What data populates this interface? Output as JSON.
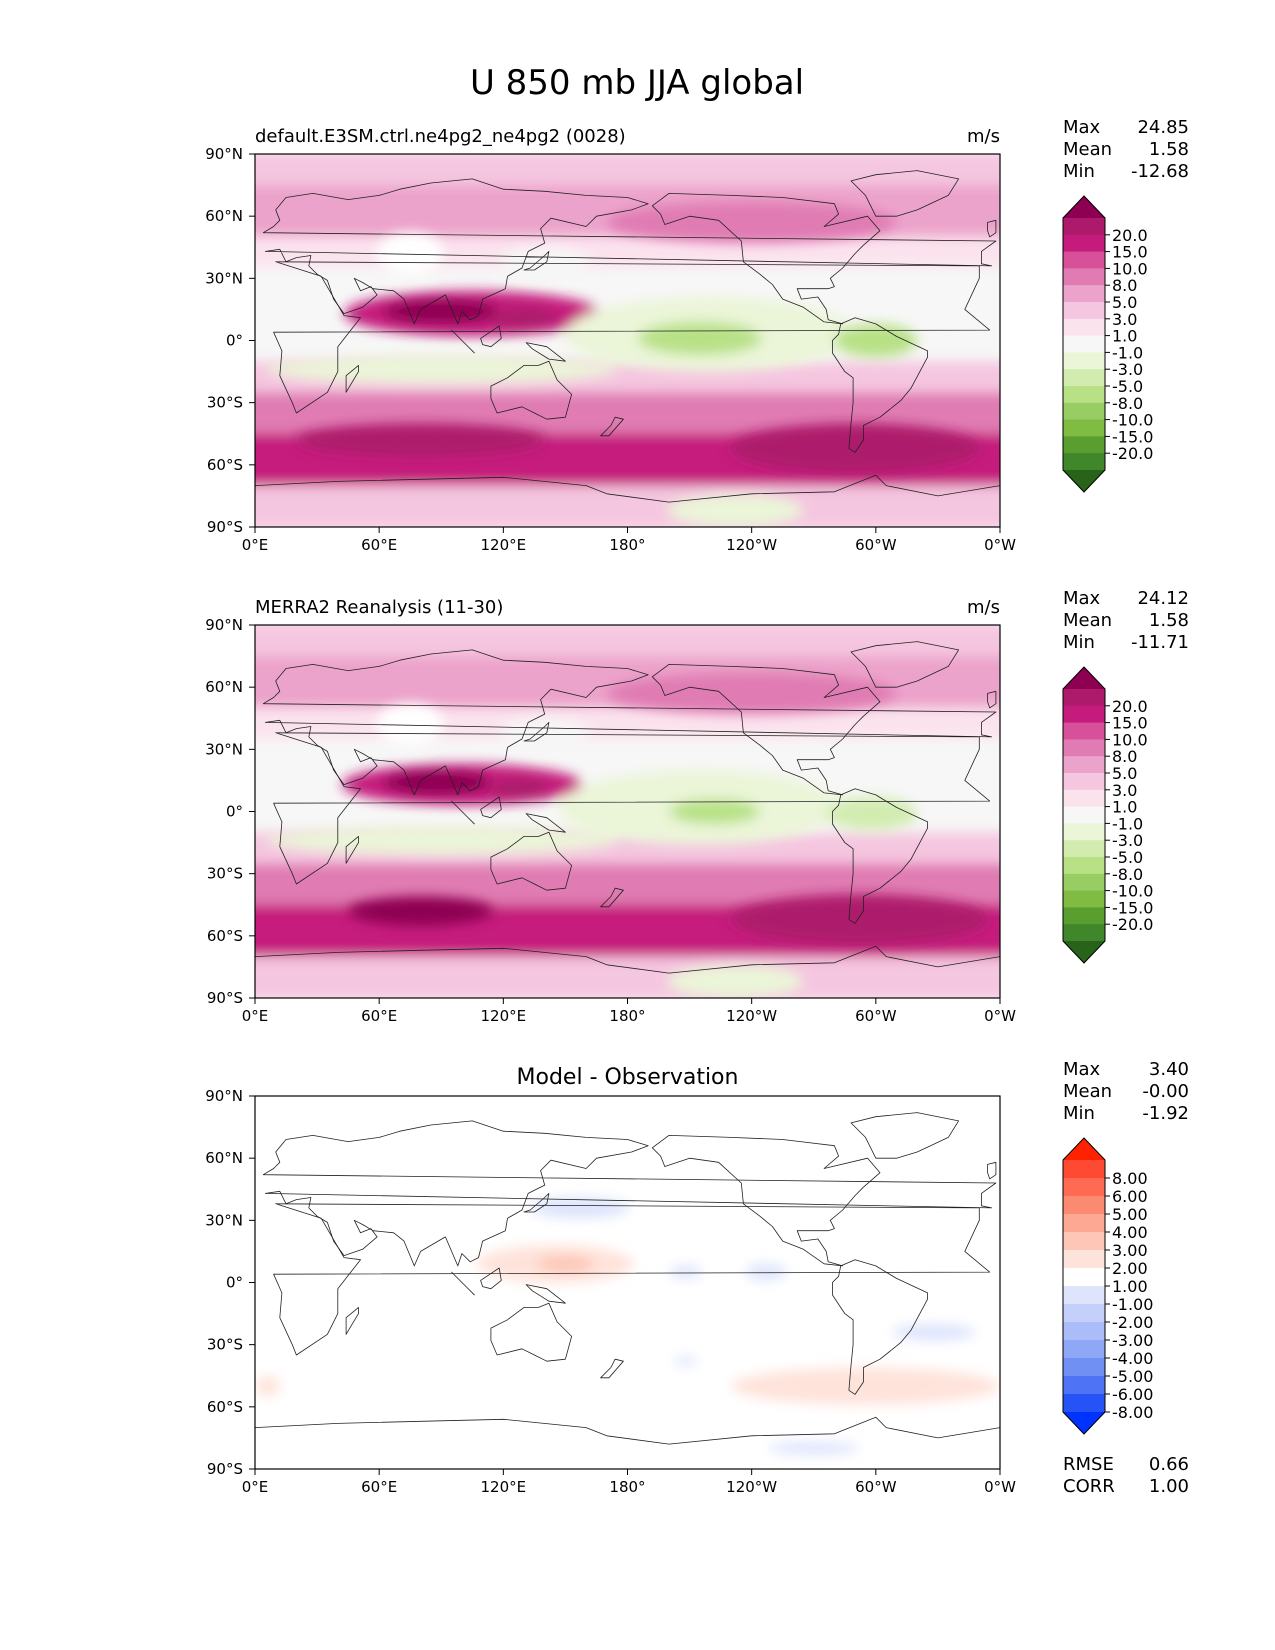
{
  "title": "U 850 mb JJA global",
  "chart_data": [
    {
      "type": "heatmap",
      "title": "default.E3SM.ctrl.ne4pg2_ne4pg2 (0028)",
      "units": "m/s",
      "stats": [
        {
          "label": "Max",
          "value": "24.85"
        },
        {
          "label": "Mean",
          "value": "1.58"
        },
        {
          "label": "Min",
          "value": "-12.68"
        }
      ],
      "colorbar_levels": [
        "20.0",
        "15.0",
        "10.0",
        "8.0",
        "5.0",
        "3.0",
        "1.0",
        "-1.0",
        "-3.0",
        "-5.0",
        "-8.0",
        "-10.0",
        "-15.0",
        "-20.0"
      ],
      "colorbar_colors": [
        "#8e0152",
        "#ad1a6c",
        "#c51b7d",
        "#d84f9a",
        "#e07cb3",
        "#eca3cb",
        "#f5c6e0",
        "#fbe3ee",
        "#f7f7f7",
        "#ebf5d8",
        "#d2ecb0",
        "#b8e186",
        "#97cd63",
        "#7fbc41",
        "#5a9e2f",
        "#40862a",
        "#276419"
      ],
      "x_ticks": [
        "0°E",
        "60°E",
        "120°E",
        "180°",
        "120°W",
        "60°W",
        "0°W"
      ],
      "y_ticks": [
        "90°N",
        "60°N",
        "30°N",
        "0°",
        "30°S",
        "60°S",
        "90°S"
      ],
      "xlim": [
        0,
        360
      ],
      "ylim": [
        -90,
        90
      ],
      "zonal_bands": [
        {
          "lat": [
            75,
            90
          ],
          "value": 1
        },
        {
          "lat": [
            50,
            75
          ],
          "value": 3
        },
        {
          "lat": [
            35,
            50
          ],
          "value": 0
        },
        {
          "lat": [
            -10,
            35
          ],
          "value": -3
        },
        {
          "lat": [
            -25,
            -10
          ],
          "value": 2
        },
        {
          "lat": [
            -45,
            -25
          ],
          "value": 6
        },
        {
          "lat": [
            -70,
            -45
          ],
          "value": 12
        },
        {
          "lat": [
            -90,
            -70
          ],
          "value": 1
        }
      ],
      "anomalies": [
        {
          "lon": 75,
          "lat": 42,
          "rx": 16,
          "ry": 10,
          "value": null
        },
        {
          "lon": 105,
          "lat": 13,
          "rx": 62,
          "ry": 11,
          "value": 10
        },
        {
          "lon": 90,
          "lat": 14,
          "rx": 28,
          "ry": 6,
          "value": 20
        },
        {
          "lon": 130,
          "lat": 11,
          "rx": 16,
          "ry": 5,
          "value": 15
        },
        {
          "lon": 220,
          "lat": 3,
          "rx": 70,
          "ry": 18,
          "value": -5
        },
        {
          "lon": 215,
          "lat": 1,
          "rx": 30,
          "ry": 8,
          "value": -10
        },
        {
          "lon": 300,
          "lat": 0,
          "rx": 20,
          "ry": 8,
          "value": -10
        },
        {
          "lon": 90,
          "lat": -14,
          "rx": 85,
          "ry": 7,
          "value": -5
        },
        {
          "lon": 140,
          "lat": 38,
          "rx": 22,
          "ry": 7,
          "value": -3
        },
        {
          "lon": 240,
          "lat": 57,
          "rx": 70,
          "ry": 10,
          "value": 5
        },
        {
          "lon": 290,
          "lat": -52,
          "rx": 60,
          "ry": 12,
          "value": 15
        },
        {
          "lon": 80,
          "lat": -48,
          "rx": 60,
          "ry": 8,
          "value": 15
        },
        {
          "lon": 232,
          "lat": -82,
          "rx": 33,
          "ry": 8,
          "value": -5
        }
      ]
    },
    {
      "type": "heatmap",
      "title": "MERRA2 Reanalysis (11-30)",
      "units": "m/s",
      "stats": [
        {
          "label": "Max",
          "value": "24.12"
        },
        {
          "label": "Mean",
          "value": "1.58"
        },
        {
          "label": "Min",
          "value": "-11.71"
        }
      ],
      "colorbar_levels": [
        "20.0",
        "15.0",
        "10.0",
        "8.0",
        "5.0",
        "3.0",
        "1.0",
        "-1.0",
        "-3.0",
        "-5.0",
        "-8.0",
        "-10.0",
        "-15.0",
        "-20.0"
      ],
      "colorbar_colors": [
        "#8e0152",
        "#ad1a6c",
        "#c51b7d",
        "#d84f9a",
        "#e07cb3",
        "#eca3cb",
        "#f5c6e0",
        "#fbe3ee",
        "#f7f7f7",
        "#ebf5d8",
        "#d2ecb0",
        "#b8e186",
        "#97cd63",
        "#7fbc41",
        "#5a9e2f",
        "#40862a",
        "#276419"
      ],
      "x_ticks": [
        "0°E",
        "60°E",
        "120°E",
        "180°",
        "120°W",
        "60°W",
        "0°W"
      ],
      "y_ticks": [
        "90°N",
        "60°N",
        "30°N",
        "0°",
        "30°S",
        "60°S",
        "90°S"
      ],
      "xlim": [
        0,
        360
      ],
      "ylim": [
        -90,
        90
      ],
      "zonal_bands": [
        {
          "lat": [
            75,
            90
          ],
          "value": 1
        },
        {
          "lat": [
            50,
            75
          ],
          "value": 3
        },
        {
          "lat": [
            35,
            50
          ],
          "value": 0
        },
        {
          "lat": [
            -10,
            35
          ],
          "value": -3
        },
        {
          "lat": [
            -25,
            -10
          ],
          "value": 2
        },
        {
          "lat": [
            -45,
            -25
          ],
          "value": 6
        },
        {
          "lat": [
            -70,
            -45
          ],
          "value": 12
        },
        {
          "lat": [
            -90,
            -70
          ],
          "value": 1
        }
      ],
      "anomalies": [
        {
          "lon": 75,
          "lat": 42,
          "rx": 16,
          "ry": 10,
          "value": null
        },
        {
          "lon": 100,
          "lat": 13,
          "rx": 58,
          "ry": 10,
          "value": 10
        },
        {
          "lon": 88,
          "lat": 14,
          "rx": 26,
          "ry": 6,
          "value": 20
        },
        {
          "lon": 128,
          "lat": 11,
          "rx": 14,
          "ry": 5,
          "value": 15
        },
        {
          "lon": 215,
          "lat": 2,
          "rx": 68,
          "ry": 18,
          "value": -5
        },
        {
          "lon": 222,
          "lat": 0,
          "rx": 22,
          "ry": 6,
          "value": -10
        },
        {
          "lon": 298,
          "lat": -1,
          "rx": 22,
          "ry": 8,
          "value": -8
        },
        {
          "lon": 90,
          "lat": -14,
          "rx": 85,
          "ry": 7,
          "value": -5
        },
        {
          "lon": 140,
          "lat": 38,
          "rx": 22,
          "ry": 7,
          "value": -3
        },
        {
          "lon": 240,
          "lat": 57,
          "rx": 70,
          "ry": 10,
          "value": 5
        },
        {
          "lon": 292,
          "lat": -52,
          "rx": 62,
          "ry": 12,
          "value": 15
        },
        {
          "lon": 80,
          "lat": -48,
          "rx": 35,
          "ry": 7,
          "value": 20
        },
        {
          "lon": 232,
          "lat": -82,
          "rx": 33,
          "ry": 8,
          "value": -5
        }
      ]
    },
    {
      "type": "heatmap",
      "title": "Model - Observation",
      "units": "",
      "stats": [
        {
          "label": "Max",
          "value": "3.40"
        },
        {
          "label": "Mean",
          "value": "-0.00"
        },
        {
          "label": "Min",
          "value": "-1.92"
        }
      ],
      "extra_stats": [
        {
          "label": "RMSE",
          "value": "0.66"
        },
        {
          "label": "CORR",
          "value": "1.00"
        }
      ],
      "colorbar_levels": [
        "8.00",
        "6.00",
        "5.00",
        "4.00",
        "3.00",
        "2.00",
        "1.00",
        "-1.00",
        "-2.00",
        "-3.00",
        "-4.00",
        "-5.00",
        "-6.00",
        "-8.00"
      ],
      "colorbar_colors": [
        "#ff2200",
        "#ff4a33",
        "#ff6a52",
        "#fc8a70",
        "#fda893",
        "#fdc6b6",
        "#fee3da",
        "#ffffff",
        "#dde4fc",
        "#c4d0fa",
        "#aabdf8",
        "#8fa8f6",
        "#7090f4",
        "#4e74f5",
        "#2653f6",
        "#0033ff"
      ],
      "x_ticks": [
        "0°E",
        "60°E",
        "120°E",
        "180°",
        "120°W",
        "60°W",
        "0°W"
      ],
      "y_ticks": [
        "90°N",
        "60°N",
        "30°N",
        "0°",
        "30°S",
        "60°S",
        "90°S"
      ],
      "xlim": [
        0,
        360
      ],
      "ylim": [
        -90,
        90
      ],
      "zonal_bands": [],
      "anomalies": [
        {
          "lon": 145,
          "lat": 9,
          "rx": 38,
          "ry": 9,
          "value": 1.5
        },
        {
          "lon": 150,
          "lat": 9,
          "rx": 14,
          "ry": 4,
          "value": 2.5
        },
        {
          "lon": 157,
          "lat": 36,
          "rx": 24,
          "ry": 5,
          "value": -1.5
        },
        {
          "lon": 208,
          "lat": 5,
          "rx": 8,
          "ry": 3,
          "value": -1.5
        },
        {
          "lon": 247,
          "lat": 5,
          "rx": 10,
          "ry": 4,
          "value": -1.5
        },
        {
          "lon": 328,
          "lat": -24,
          "rx": 20,
          "ry": 4,
          "value": -1.5
        },
        {
          "lon": 295,
          "lat": -50,
          "rx": 65,
          "ry": 9,
          "value": 1.5
        },
        {
          "lon": 6,
          "lat": -50,
          "rx": 6,
          "ry": 5,
          "value": 1.5
        },
        {
          "lon": 270,
          "lat": -80,
          "rx": 22,
          "ry": 3,
          "value": -1.5
        },
        {
          "lon": 208,
          "lat": -38,
          "rx": 6,
          "ry": 2,
          "value": -1.5
        }
      ]
    }
  ]
}
